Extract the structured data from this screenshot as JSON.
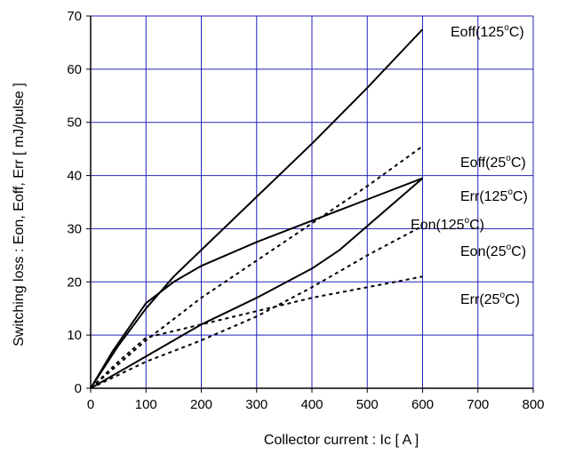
{
  "chart_data": {
    "type": "line",
    "xlabel": "Collector current : Ic [ A ]",
    "ylabel": "Switching loss : Eon, Eoff, Err [ mJ/pulse ]",
    "xlim": [
      0,
      800
    ],
    "ylim": [
      0,
      70
    ],
    "x_ticks": [
      "0",
      "100",
      "200",
      "300",
      "400",
      "500",
      "600",
      "700",
      "800"
    ],
    "y_ticks": [
      "0",
      "10",
      "20",
      "30",
      "40",
      "50",
      "60",
      "70"
    ],
    "grid": true,
    "colors": {
      "grid": "#2222bb",
      "line": "#000000",
      "axis": "#000000"
    },
    "series": [
      {
        "name": "Eoff(125°C)",
        "label_main": "Eoff(125",
        "label_sup": "o",
        "label_tail": "C)",
        "style": "solid",
        "x": [
          0,
          50,
          100,
          150,
          200,
          300,
          400,
          500,
          600
        ],
        "y": [
          0,
          8,
          15,
          21,
          26,
          36,
          46,
          56.5,
          67.5
        ]
      },
      {
        "name": "Eoff(25°C)",
        "label_main": "Eoff(25",
        "label_sup": "o",
        "label_tail": "C)",
        "style": "dashed",
        "x": [
          0,
          100,
          200,
          300,
          400,
          500,
          600
        ],
        "y": [
          0,
          9,
          17,
          24,
          31,
          38,
          45.5
        ]
      },
      {
        "name": "Err(125°C)",
        "label_main": "Err(125",
        "label_sup": "o",
        "label_tail": "C)",
        "style": "solid",
        "x": [
          0,
          40,
          100,
          150,
          200,
          300,
          400,
          500,
          600
        ],
        "y": [
          0,
          7,
          16,
          20,
          23,
          27.5,
          31.5,
          35.5,
          39.5
        ]
      },
      {
        "name": "Eon(125°C)",
        "label_main": "Eon(125",
        "label_sup": "o",
        "label_tail": "C)",
        "style": "solid",
        "x": [
          0,
          100,
          200,
          300,
          400,
          450,
          500,
          550,
          600
        ],
        "y": [
          0,
          6,
          12,
          17,
          22.5,
          26,
          30.5,
          35,
          39.5
        ]
      },
      {
        "name": "Eon(25°C)",
        "label_main": "Eon(25",
        "label_sup": "o",
        "label_tail": "C)",
        "style": "dashed",
        "x": [
          0,
          100,
          200,
          300,
          400,
          500,
          600
        ],
        "y": [
          0,
          5,
          9,
          13.5,
          19,
          25,
          30.5
        ]
      },
      {
        "name": "Err(25°C)",
        "label_main": "Err(25",
        "label_sup": "o",
        "label_tail": "C)",
        "style": "dashed",
        "x": [
          0,
          50,
          100,
          200,
          300,
          400,
          500,
          600
        ],
        "y": [
          0,
          5,
          9.5,
          12,
          14.5,
          17,
          19,
          21
        ]
      }
    ]
  }
}
